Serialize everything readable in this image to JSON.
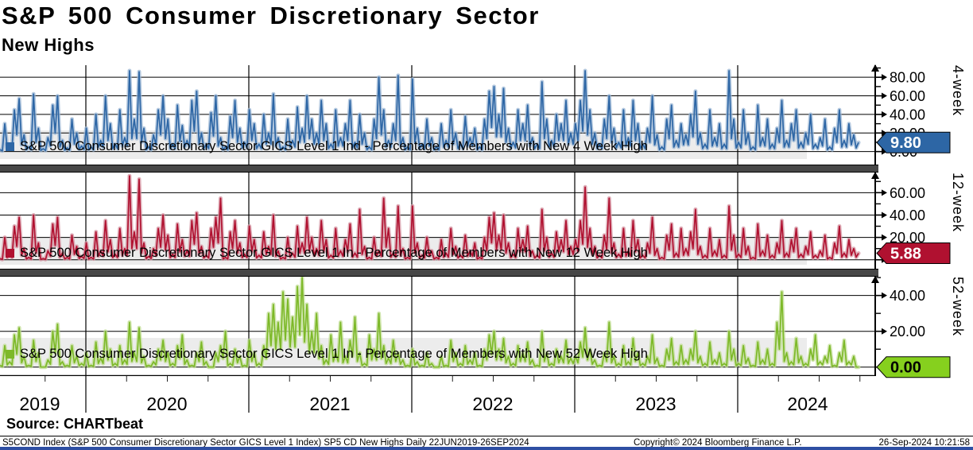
{
  "header": {
    "title": "S&P 500 Consumer Discretionary Sector",
    "subtitle": "New Highs"
  },
  "source_label": "Source: CHARTbeat",
  "footer": {
    "left": "S5COND Index (S&P 500 Consumer Discretionary Sector GICS Level 1 Index) SP5 CD New Highs  Daily 22JUN2019-26SEP2024",
    "center": "Copyright© 2024 Bloomberg Finance L.P.",
    "right": "26-Sep-2024 10:21:58"
  },
  "x_axis": {
    "years": [
      "2019",
      "2020",
      "2021",
      "2022",
      "2023",
      "2024"
    ]
  },
  "chart_data": [
    {
      "type": "line",
      "panel_label": "4-week",
      "legend": "S&P 500 Consumer Discretionary Sector GICS Level 1 Ind - Percentage of Members with New 4 Week High",
      "color": "#2d66a5",
      "halo_color": "#9db8d6",
      "tag_color": "#2d66a5",
      "tag_text_color": "#ffffff",
      "last_value": 9.8,
      "last_label": "9.80",
      "ylim": [
        -14,
        93
      ],
      "yticks": [
        {
          "v": 0,
          "label": "0.00"
        },
        {
          "v": 20,
          "label": "20.00"
        },
        {
          "v": 40,
          "label": "40.00"
        },
        {
          "v": 60,
          "label": "60.00"
        },
        {
          "v": 80,
          "label": "80.00"
        }
      ],
      "yticks_minor": [
        10,
        30,
        50,
        70,
        90
      ],
      "x_range_label": "22JUN2019-26SEP2024",
      "values": [
        2,
        30,
        8,
        45,
        57,
        18,
        5,
        62,
        25,
        3,
        15,
        50,
        60,
        12,
        4,
        35,
        20,
        6,
        25,
        5,
        40,
        12,
        60,
        30,
        8,
        45,
        15,
        87,
        35,
        86,
        25,
        5,
        18,
        45,
        60,
        35,
        8,
        50,
        28,
        12,
        55,
        65,
        20,
        8,
        42,
        60,
        15,
        5,
        38,
        55,
        25,
        10,
        45,
        30,
        8,
        40,
        20,
        62,
        15,
        5,
        35,
        12,
        48,
        25,
        60,
        35,
        20,
        55,
        30,
        8,
        45,
        15,
        30,
        55,
        10,
        40,
        20,
        5,
        35,
        80,
        45,
        12,
        30,
        82,
        15,
        5,
        78,
        25,
        8,
        35,
        15,
        5,
        30,
        12,
        45,
        20,
        8,
        38,
        15,
        25,
        5,
        35,
        65,
        70,
        40,
        68,
        25,
        10,
        45,
        30,
        50,
        15,
        8,
        75,
        35,
        12,
        40,
        30,
        55,
        20,
        30,
        55,
        87,
        45,
        20,
        8,
        35,
        60,
        25,
        10,
        45,
        15,
        55,
        30,
        8,
        25,
        60,
        18,
        5,
        35,
        50,
        12,
        30,
        18,
        40,
        65,
        20,
        8,
        45,
        15,
        30,
        8,
        87,
        35,
        10,
        45,
        20,
        5,
        50,
        15,
        35,
        8,
        25,
        55,
        12,
        30,
        45,
        10,
        20,
        40,
        8,
        15,
        35,
        5,
        25,
        45,
        12,
        30,
        18,
        9.8
      ]
    },
    {
      "type": "line",
      "panel_label": "12-week",
      "legend": "S&P 500 Consumer Discretionary Sector GICS Level 1 In - Percentage of Members with New 12 Week High",
      "color": "#b01130",
      "halo_color": "#d494a1",
      "tag_color": "#b01130",
      "tag_text_color": "#ffffff",
      "last_value": 5.88,
      "last_label": "5.88",
      "ylim": [
        -8,
        78
      ],
      "yticks": [
        {
          "v": 0,
          "label": ""
        },
        {
          "v": 20,
          "label": "20.00"
        },
        {
          "v": 40,
          "label": "40.00"
        },
        {
          "v": 60,
          "label": "60.00"
        }
      ],
      "yticks_minor": [
        10,
        30,
        50,
        70
      ],
      "x_range_label": "22JUN2019-26SEP2024",
      "values": [
        1,
        20,
        5,
        30,
        38,
        10,
        2,
        40,
        15,
        1,
        8,
        32,
        38,
        6,
        2,
        22,
        12,
        3,
        15,
        2,
        25,
        8,
        35,
        18,
        5,
        28,
        10,
        75,
        25,
        72,
        15,
        3,
        10,
        28,
        40,
        22,
        5,
        32,
        18,
        8,
        35,
        42,
        12,
        4,
        28,
        38,
        55,
        2,
        25,
        35,
        15,
        5,
        30,
        18,
        4,
        25,
        12,
        40,
        8,
        2,
        20,
        6,
        30,
        15,
        38,
        20,
        10,
        35,
        18,
        4,
        28,
        8,
        18,
        32,
        6,
        45,
        12,
        2,
        20,
        8,
        55,
        28,
        6,
        48,
        10,
        2,
        48,
        15,
        4,
        20,
        8,
        2,
        18,
        6,
        28,
        12,
        4,
        22,
        8,
        15,
        2,
        20,
        38,
        42,
        22,
        40,
        15,
        5,
        28,
        18,
        30,
        8,
        4,
        45,
        20,
        6,
        25,
        18,
        35,
        12,
        18,
        35,
        65,
        28,
        12,
        4,
        22,
        55,
        15,
        5,
        28,
        8,
        35,
        18,
        4,
        15,
        38,
        10,
        2,
        22,
        32,
        6,
        28,
        10,
        25,
        45,
        12,
        4,
        28,
        8,
        18,
        4,
        48,
        22,
        5,
        28,
        12,
        2,
        32,
        8,
        22,
        4,
        15,
        35,
        6,
        18,
        28,
        5,
        12,
        25,
        4,
        8,
        22,
        2,
        15,
        30,
        6,
        18,
        10,
        5.88
      ]
    },
    {
      "type": "line",
      "panel_label": "52-week",
      "legend": "S&P 500 Consumer Discretionary Sector GICS Level 1 In - Percentage of Members with New 52 Week High",
      "color": "#7db929",
      "halo_color": "#c2dd95",
      "tag_color": "#86d01e",
      "tag_text_color": "#000000",
      "last_value": 0,
      "last_label": "0.00",
      "ylim": [
        -5,
        50.5
      ],
      "yticks": [
        {
          "v": 0,
          "label": ""
        },
        {
          "v": 20,
          "label": "20.00"
        },
        {
          "v": 40,
          "label": "40.00"
        }
      ],
      "yticks_minor": [
        10,
        30,
        50
      ],
      "x_range_label": "22JUN2019-26SEP2024",
      "values": [
        1,
        12,
        3,
        18,
        22,
        6,
        1,
        15,
        8,
        0,
        4,
        20,
        24,
        3,
        1,
        12,
        6,
        2,
        8,
        1,
        14,
        5,
        20,
        10,
        2,
        12,
        4,
        25,
        8,
        22,
        6,
        1,
        3,
        10,
        15,
        8,
        2,
        12,
        18,
        4,
        1,
        8,
        14,
        3,
        0,
        8,
        12,
        20,
        2,
        10,
        6,
        1,
        15,
        8,
        2,
        12,
        30,
        35,
        25,
        42,
        38,
        28,
        45,
        50,
        35,
        20,
        30,
        12,
        4,
        18,
        8,
        25,
        6,
        15,
        28,
        8,
        2,
        18,
        10,
        30,
        12,
        5,
        15,
        8,
        4,
        1,
        10,
        3,
        1,
        8,
        2,
        0,
        6,
        1,
        15,
        8,
        2,
        12,
        4,
        8,
        1,
        10,
        18,
        20,
        10,
        16,
        6,
        2,
        12,
        8,
        14,
        4,
        1,
        20,
        8,
        2,
        10,
        6,
        15,
        5,
        6,
        14,
        22,
        10,
        4,
        1,
        8,
        25,
        6,
        2,
        12,
        3,
        16,
        8,
        2,
        6,
        18,
        5,
        1,
        10,
        16,
        3,
        12,
        4,
        10,
        20,
        6,
        2,
        14,
        4,
        8,
        2,
        20,
        10,
        2,
        12,
        5,
        1,
        14,
        4,
        10,
        2,
        25,
        42,
        8,
        3,
        16,
        6,
        2,
        10,
        18,
        3,
        6,
        12,
        1,
        8,
        15,
        3,
        6,
        0
      ]
    }
  ]
}
